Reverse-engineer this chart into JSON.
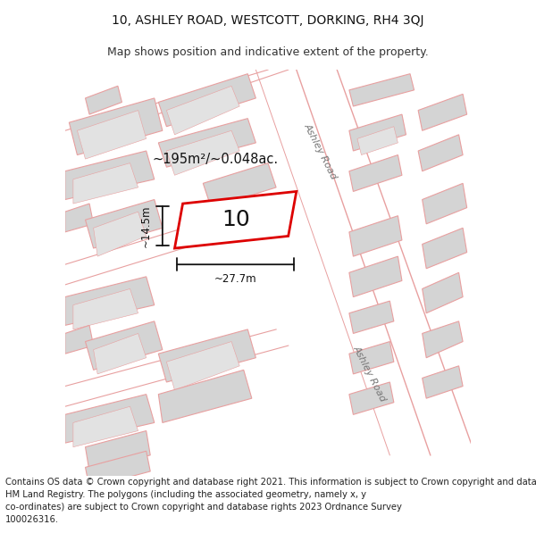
{
  "title": "10, ASHLEY ROAD, WESTCOTT, DORKING, RH4 3QJ",
  "subtitle": "Map shows position and indicative extent of the property.",
  "footer": "Contains OS data © Crown copyright and database right 2021. This information is subject to Crown copyright and database rights 2023 and is reproduced with the permission of\nHM Land Registry. The polygons (including the associated geometry, namely x, y\nco-ordinates) are subject to Crown copyright and database rights 2023 Ordnance Survey\n100026316.",
  "bg_color": "#ffffff",
  "map_bg": "#ebebeb",
  "road_fill": "#ffffff",
  "road_stroke": "#e8a0a0",
  "building_fill": "#d4d4d4",
  "building_stroke": "#e8a0a0",
  "highlight_fill": "#ffffff",
  "highlight_stroke": "#dd0000",
  "highlight_lw": 2.0,
  "area_text": "~195m²/~0.048ac.",
  "property_label": "10",
  "dim_width": "~27.7m",
  "dim_height": "~14.5m",
  "road_label_1": "Ashley Road",
  "road_label_2": "Ashley Road",
  "title_fontsize": 10,
  "subtitle_fontsize": 9,
  "footer_fontsize": 7.2
}
